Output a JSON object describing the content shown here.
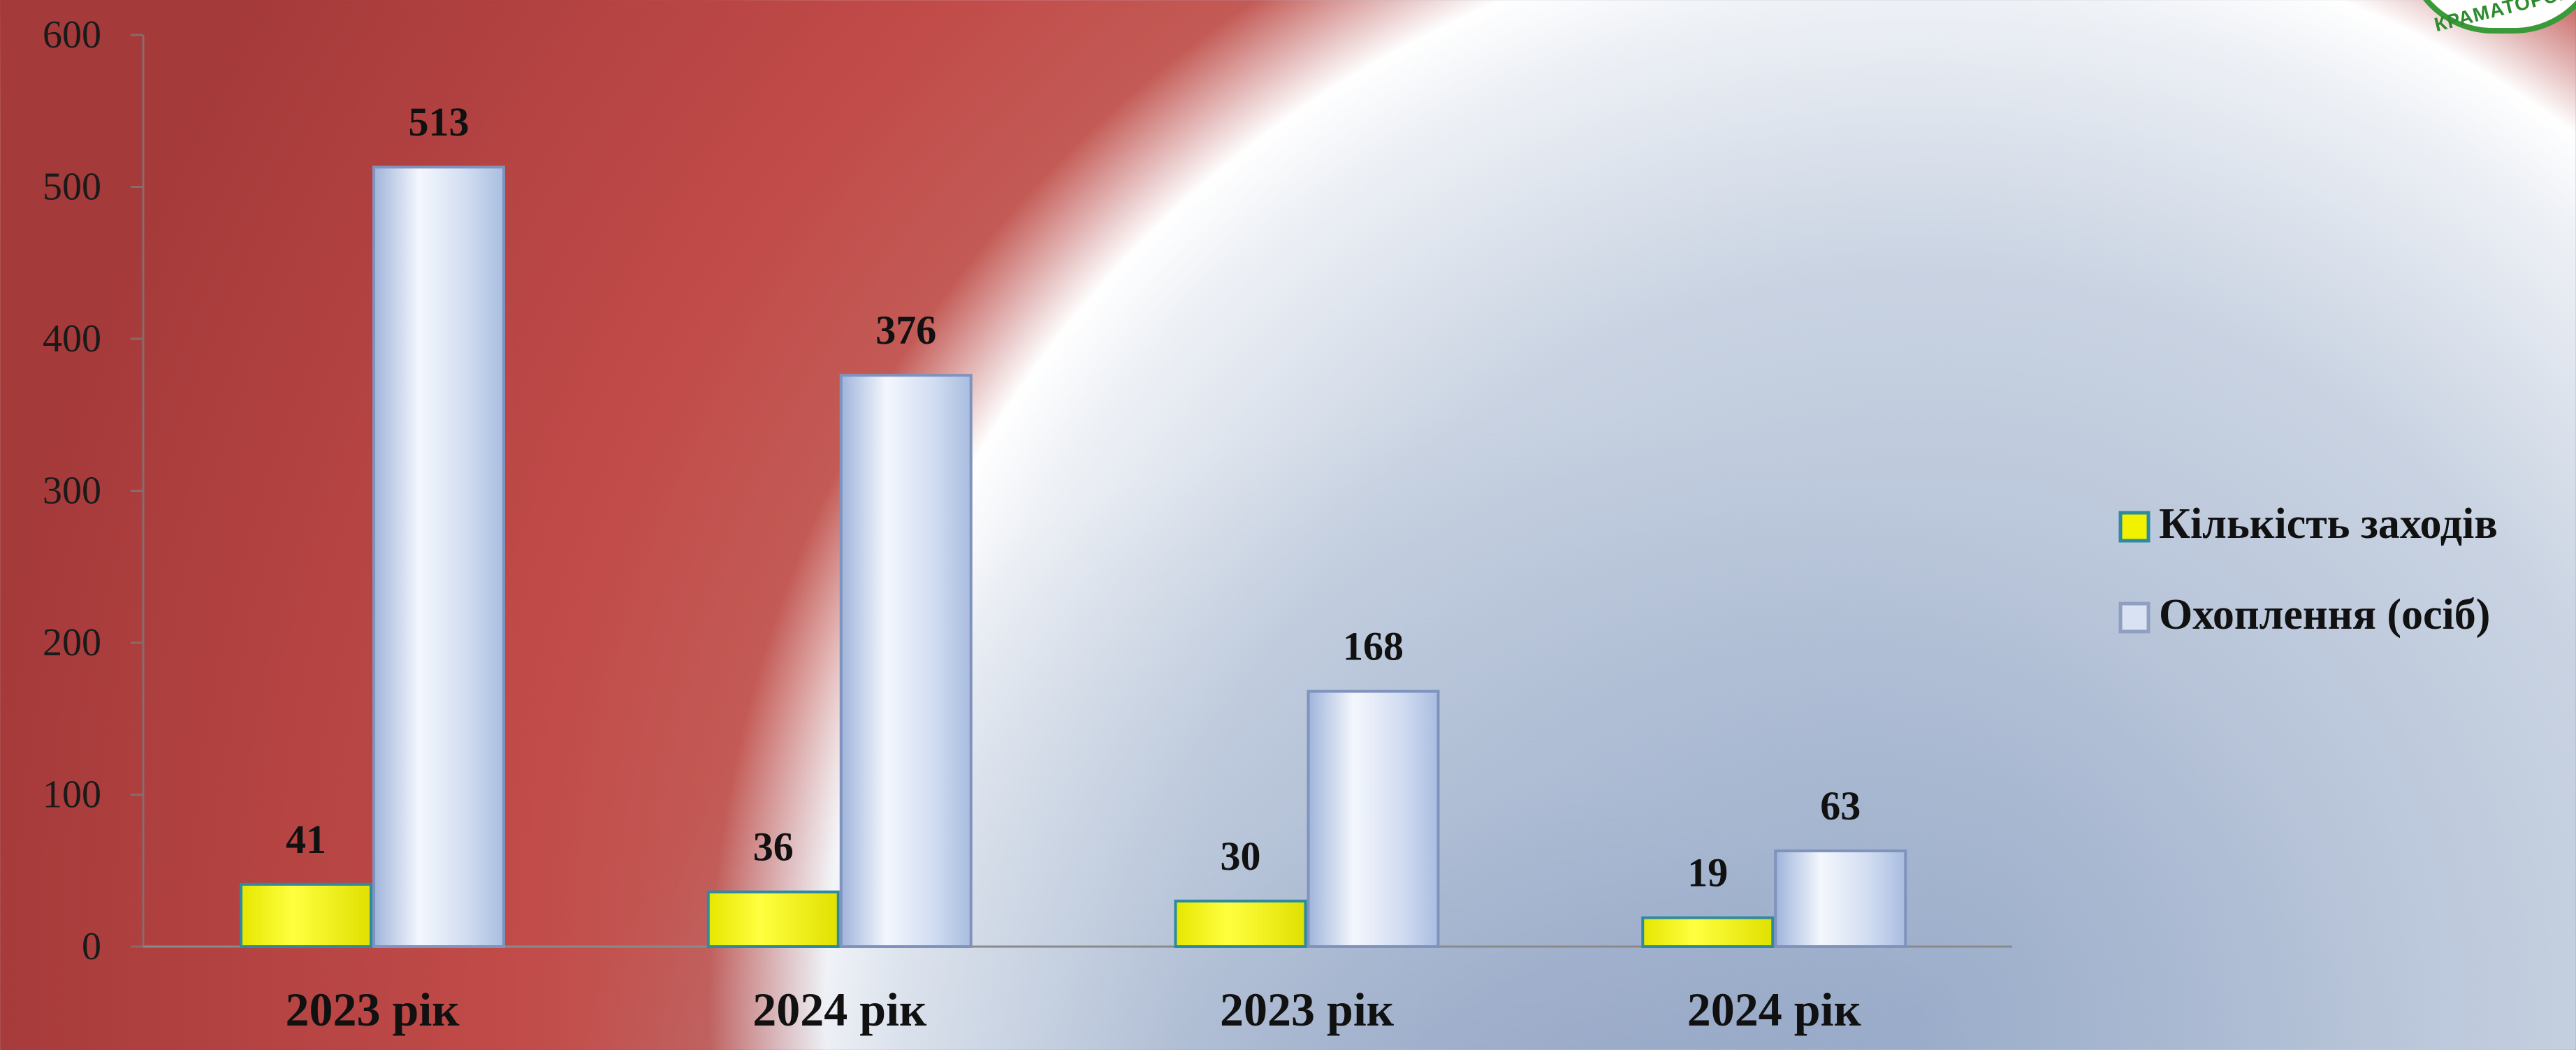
{
  "logo": {
    "text": "КРАМАТОРСЬ"
  },
  "chart_data": {
    "type": "bar",
    "categories": [
      "2023 рік",
      "2024 рік",
      "2023 рік",
      "2024 рік"
    ],
    "series": [
      {
        "name": "Кількість заходів",
        "values": [
          41,
          36,
          30,
          19
        ],
        "color": "#f2f200"
      },
      {
        "name": "Охоплення (осіб)",
        "values": [
          513,
          376,
          168,
          63
        ],
        "color": "#c9d8f0"
      }
    ],
    "ylim": [
      0,
      600
    ],
    "yticks": [
      0,
      100,
      200,
      300,
      400,
      500,
      600
    ],
    "legend_position": "right",
    "grid": false,
    "title": "",
    "xlabel": "",
    "ylabel": ""
  }
}
